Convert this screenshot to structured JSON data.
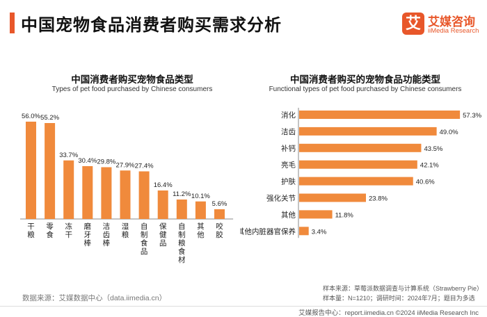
{
  "page": {
    "title": "中国宠物食品消费者购买需求分析",
    "logo_mark": "艾",
    "logo_cn": "艾媒咨询",
    "logo_en": "iiMedia Research",
    "source_left": "数据来源：艾媒数据中心（data.iimedia.cn）",
    "note_source": "样本来源：草莓派数据调查与计算系统（Strawberry Pie）",
    "note_sample": "样本量：N=1210；调研时间：2024年7月；题目为多选",
    "footer_right": "艾媒报告中心：report.iimedia.cn    ©2024  iiMedia Research  Inc"
  },
  "colors": {
    "accent": "#e8572a",
    "bar": "#f08a3c"
  },
  "chart_data": [
    {
      "type": "bar",
      "title": "中国消费者购买宠物食品类型",
      "subtitle": "Types of pet food purchased by Chinese consumers",
      "categories": [
        "干粮",
        "零食",
        "冻干",
        "磨牙棒",
        "洁齿棒",
        "湿粮",
        "自制食品",
        "保健品",
        "自制粮食材",
        "其他",
        "咬胶"
      ],
      "values": [
        56.0,
        55.2,
        33.7,
        30.4,
        29.8,
        27.9,
        27.4,
        16.4,
        11.2,
        10.1,
        5.6
      ],
      "labels": [
        "56.0%",
        "55.2%",
        "33.7%",
        "30.4%",
        "29.8%",
        "27.9%",
        "27.4%",
        "16.4%",
        "11.2%",
        "10.1%",
        "5.6%"
      ],
      "ylim": [
        0,
        60
      ]
    },
    {
      "type": "bar",
      "orientation": "horizontal",
      "title": "中国消费者购买的宠物食品功能类型",
      "subtitle": "Functional types of pet food purchased by Chinese consumers",
      "categories": [
        "消化",
        "洁齿",
        "补钙",
        "亮毛",
        "护肤",
        "强化关节",
        "其他",
        "其他内脏器官保养"
      ],
      "values": [
        57.3,
        49.0,
        43.5,
        42.1,
        40.6,
        23.8,
        11.8,
        3.4
      ],
      "labels": [
        "57.3%",
        "49.0%",
        "43.5%",
        "42.1%",
        "40.6%",
        "23.8%",
        "11.8%",
        "3.4%"
      ],
      "xlim": [
        0,
        60
      ]
    }
  ]
}
